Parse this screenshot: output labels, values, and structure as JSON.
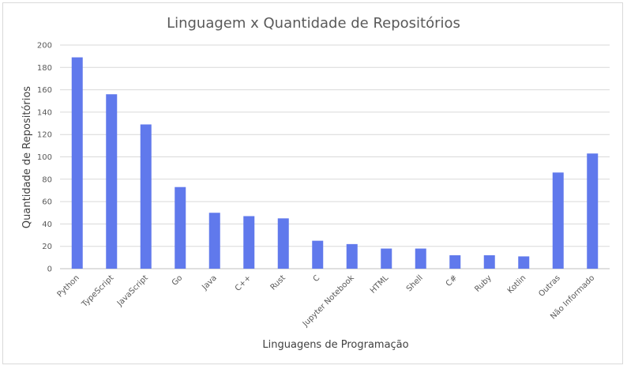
{
  "chart_data": {
    "type": "bar",
    "title": "Linguagem x Quantidade de Repositórios",
    "xlabel": "Linguagens de Programação",
    "ylabel": "Quantidade de Repositórios",
    "ylim": [
      0,
      200
    ],
    "yticks": [
      0,
      20,
      40,
      60,
      80,
      100,
      120,
      140,
      160,
      180,
      200
    ],
    "grid": true,
    "legend": "none",
    "bar_color": "#6079EC",
    "categories": [
      "Python",
      "TypeScript",
      "JavaScript",
      "Go",
      "Java",
      "C++",
      "Rust",
      "C",
      "Jupyter Notebook",
      "HTML",
      "Shell",
      "C#",
      "Ruby",
      "Kotlin",
      "Outras",
      "Não Informado"
    ],
    "values": [
      189,
      156,
      129,
      73,
      50,
      47,
      45,
      25,
      22,
      18,
      18,
      12,
      12,
      11,
      86,
      103
    ]
  }
}
